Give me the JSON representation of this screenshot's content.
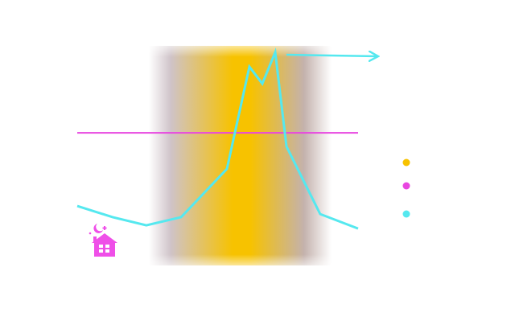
{
  "chart_data": {
    "type": "line",
    "x": [
      0,
      12.6,
      24.6,
      37.0,
      53.3,
      61.3,
      65.9,
      70.5,
      74.5,
      86.5,
      100
    ],
    "series": [
      {
        "color": "#55e8ef",
        "values": [
          27.1,
          22.0,
          18.3,
          22.0,
          44.0,
          90.5,
          82.8,
          97.1,
          54.2,
          23.4,
          16.8
        ]
      }
    ],
    "threshold": {
      "value": 60.4,
      "color": "#e846e0"
    },
    "band": {
      "x": [
        25.5,
        90.5
      ],
      "center": 58.5,
      "color": "#f7c200"
    },
    "xlim": [
      0,
      100
    ],
    "ylim": [
      0,
      100
    ]
  }
}
